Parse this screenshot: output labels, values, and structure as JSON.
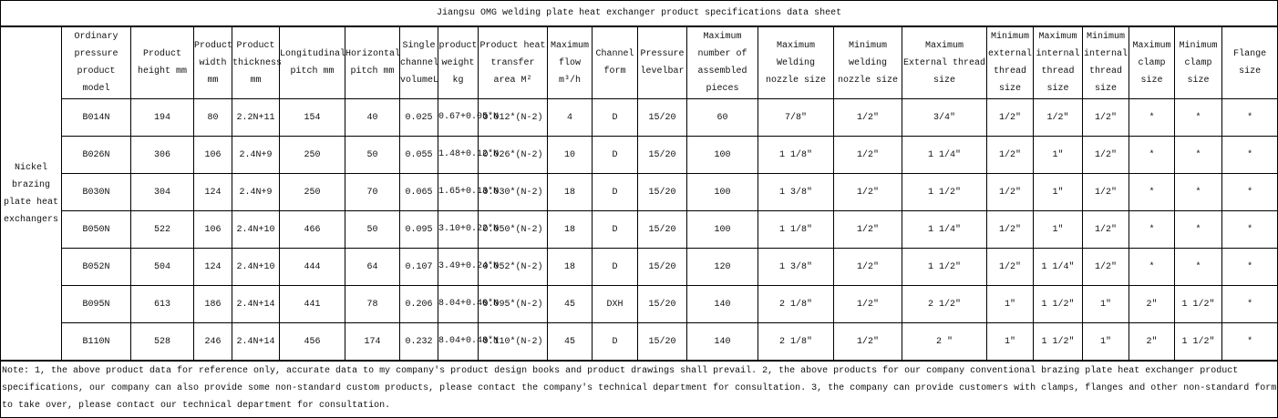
{
  "title": "Jiangsu OMG welding plate heat exchanger product specifications data sheet",
  "category": "Nickel brazing plate heat exchangers",
  "headers": [
    "Ordinary pressure product model",
    "Product height mm",
    "Product width mm",
    "Product thickness mm",
    "Longitudinal pitch mm",
    "Horizontal pitch mm",
    "Single channel volumeL",
    "product weight kg",
    "Product heat transfer area M²",
    "Maximum flow m³/h",
    "Channel form",
    "Pressure levelbar",
    "Maximum number of assembled pieces",
    "Maximum Welding nozzle size",
    "Minimum welding nozzle size",
    "Maximum External thread size",
    "Minimum external thread size",
    "Maximum internal thread size",
    "Minimum internal thread size",
    "Maximum clamp size",
    "Minimum clamp size",
    "Flange size"
  ],
  "rows": [
    [
      "B014N",
      "194",
      "80",
      "2.2N+11",
      "154",
      "40",
      "0.025",
      "0.67+0.05*N",
      "0.012*(N-2)",
      "4",
      "D",
      "15/20",
      "60",
      "7/8″",
      "1/2″",
      "3/4″",
      "1/2″",
      "1/2″",
      "1/2″",
      "*",
      "*",
      "*"
    ],
    [
      "B026N",
      "306",
      "106",
      "2.4N+9",
      "250",
      "50",
      "0.055",
      "1.48+0.12*N",
      "0.026*(N-2)",
      "10",
      "D",
      "15/20",
      "100",
      "1 1/8″",
      "1/2″",
      "1 1/4″",
      "1/2″",
      "1″",
      "1/2″",
      "*",
      "*",
      "*"
    ],
    [
      "B030N",
      "304",
      "124",
      "2.4N+9",
      "250",
      "70",
      "0.065",
      "1.65+0.13*N",
      "0.030*(N-2)",
      "18",
      "D",
      "15/20",
      "100",
      "1 3/8″",
      "1/2″",
      "1 1/2″",
      "1/2″",
      "1″",
      "1/2″",
      "*",
      "*",
      "*"
    ],
    [
      "B050N",
      "522",
      "106",
      "2.4N+10",
      "466",
      "50",
      "0.095",
      "3.10+0.22*N",
      "0.050*(N-2)",
      "18",
      "D",
      "15/20",
      "100",
      "1 1/8″",
      "1/2″",
      "1 1/4″",
      "1/2″",
      "1″",
      "1/2″",
      "*",
      "*",
      "*"
    ],
    [
      "B052N",
      "504",
      "124",
      "2.4N+10",
      "444",
      "64",
      "0.107",
      "3.49+0.24*N",
      "0.052*(N-2)",
      "18",
      "D",
      "15/20",
      "120",
      "1 3/8″",
      "1/2″",
      "1 1/2″",
      "1/2″",
      "1 1/4″",
      "1/2″",
      "*",
      "*",
      "*"
    ],
    [
      "B095N",
      "613",
      "186",
      "2.4N+14",
      "441",
      "78",
      "0.206",
      "8.04+0.40*N",
      "0.095*(N-2)",
      "45",
      "DXH",
      "15/20",
      "140",
      "2 1/8″",
      "1/2″",
      "2 1/2″",
      "1″",
      "1 1/2″",
      "1″",
      "2″",
      "1 1/2″",
      "*"
    ],
    [
      "B110N",
      "528",
      "246",
      "2.4N+14",
      "456",
      "174",
      "0.232",
      "8.04+0.48*N",
      "0.110*(N-2)",
      "45",
      "D",
      "15/20",
      "140",
      "2 1/8″",
      "1/2″",
      "2 ″",
      "1″",
      "1 1/2″",
      "1″",
      "2″",
      "1 1/2″",
      "*"
    ]
  ],
  "note": "Note: 1, the above product data for reference only, accurate data to my company's product design books and product drawings shall prevail. 2, the above products for our company conventional brazing plate heat exchanger product specifications, our company can also provide some non-standard custom products, please contact the company's technical department for consultation. 3, the company can provide customers with clamps, flanges and other non-standard form to take over, please contact our technical department for consultation."
}
